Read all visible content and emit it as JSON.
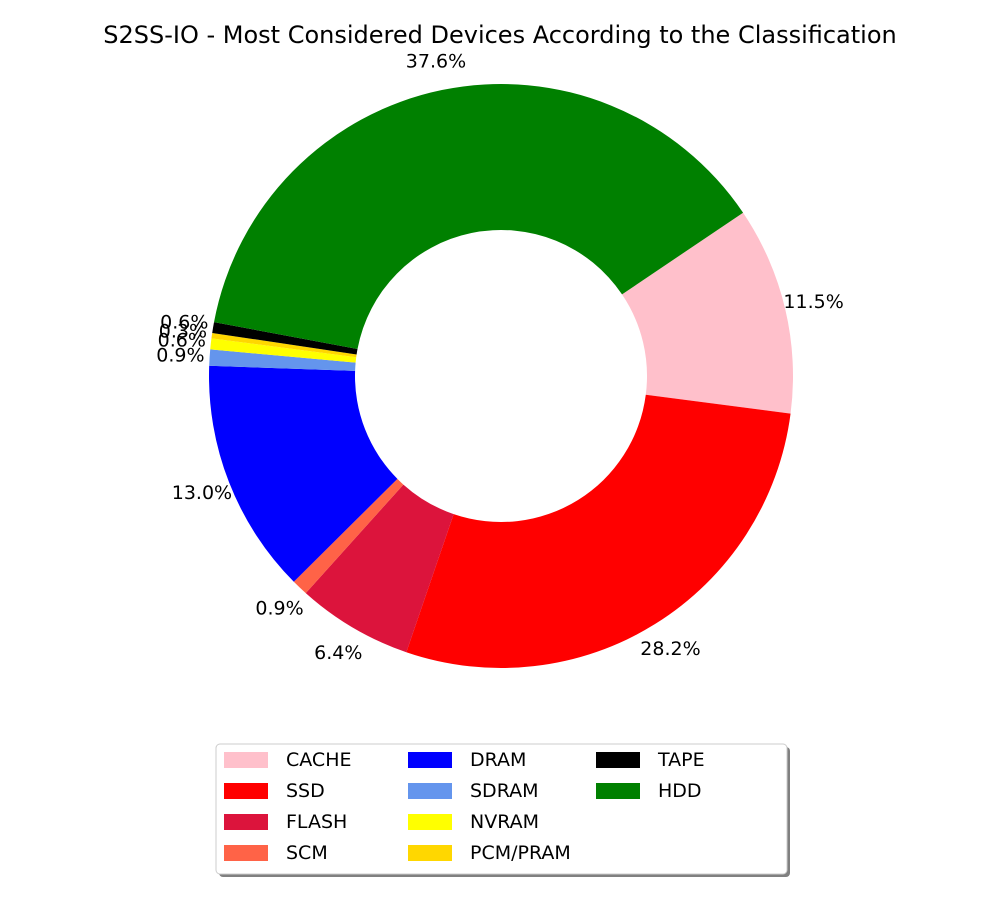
{
  "chart_data": {
    "type": "pie",
    "donut": true,
    "title": "S2SS-IO - Most Considered Devices According to the Classification",
    "slices": [
      {
        "label": "CACHE",
        "percent": 11.5,
        "percent_label": "11.5%",
        "color": "#ffc0cb"
      },
      {
        "label": "SSD",
        "percent": 28.2,
        "percent_label": "28.2%",
        "color": "#ff0000"
      },
      {
        "label": "FLASH",
        "percent": 6.4,
        "percent_label": "6.4%",
        "color": "#dc143c"
      },
      {
        "label": "SCM",
        "percent": 0.9,
        "percent_label": "0.9%",
        "color": "#ff6347"
      },
      {
        "label": "DRAM",
        "percent": 13.0,
        "percent_label": "13.0%",
        "color": "#0000ff"
      },
      {
        "label": "SDRAM",
        "percent": 0.9,
        "percent_label": "0.9%",
        "color": "#6495ed"
      },
      {
        "label": "NVRAM",
        "percent": 0.6,
        "percent_label": "0.6%",
        "color": "#ffff00"
      },
      {
        "label": "PCM/PRAM",
        "percent": 0.3,
        "percent_label": "0.3%",
        "color": "#ffd700"
      },
      {
        "label": "TAPE",
        "percent": 0.6,
        "percent_label": "0.6%",
        "color": "#000000"
      },
      {
        "label": "HDD",
        "percent": 37.6,
        "percent_label": "37.6%",
        "color": "#008000"
      }
    ],
    "legend_position": "lower-center",
    "legend_columns": 3
  }
}
